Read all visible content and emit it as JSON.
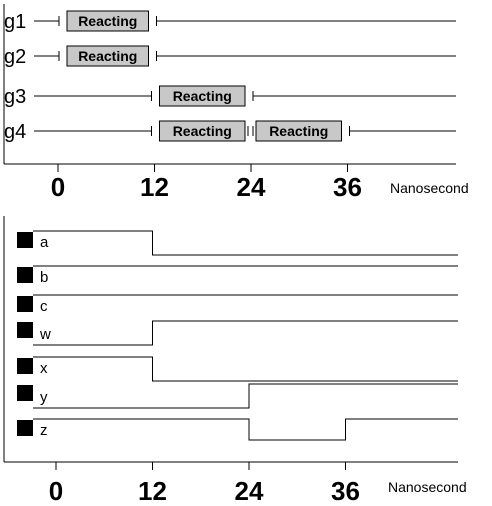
{
  "top_panel": {
    "unit": "Nanosecond",
    "ticks": [
      "0",
      "12",
      "24",
      "36"
    ],
    "gates": [
      {
        "name": "g1",
        "boxes": [
          {
            "label": "Reacting",
            "start": 0,
            "end": 12
          }
        ]
      },
      {
        "name": "g2",
        "boxes": [
          {
            "label": "Reacting",
            "start": 0,
            "end": 12
          }
        ]
      },
      {
        "name": "g3",
        "boxes": [
          {
            "label": "Reacting",
            "start": 12,
            "end": 24
          }
        ]
      },
      {
        "name": "g4",
        "boxes": [
          {
            "label": "Reacting",
            "start": 12,
            "end": 24
          },
          {
            "label": "Reacting",
            "start": 24,
            "end": 36
          }
        ]
      }
    ]
  },
  "bottom_panel": {
    "unit": "Nanosecond",
    "ticks": [
      "0",
      "12",
      "24",
      "36"
    ],
    "signals": [
      {
        "name": "a",
        "levels": [
          1,
          0,
          0,
          0
        ]
      },
      {
        "name": "b",
        "levels": [
          1,
          1,
          1,
          1
        ]
      },
      {
        "name": "c",
        "levels": [
          1,
          1,
          1,
          1
        ]
      },
      {
        "name": "w",
        "levels": [
          0,
          1,
          1,
          1
        ]
      },
      {
        "name": "x",
        "levels": [
          1,
          0,
          0,
          0
        ]
      },
      {
        "name": "y",
        "levels": [
          0,
          0,
          1,
          1
        ]
      },
      {
        "name": "z",
        "levels": [
          1,
          1,
          0,
          1
        ]
      }
    ]
  },
  "colors": {
    "box_fill": "#c8c8c8",
    "ink": "#000000"
  }
}
